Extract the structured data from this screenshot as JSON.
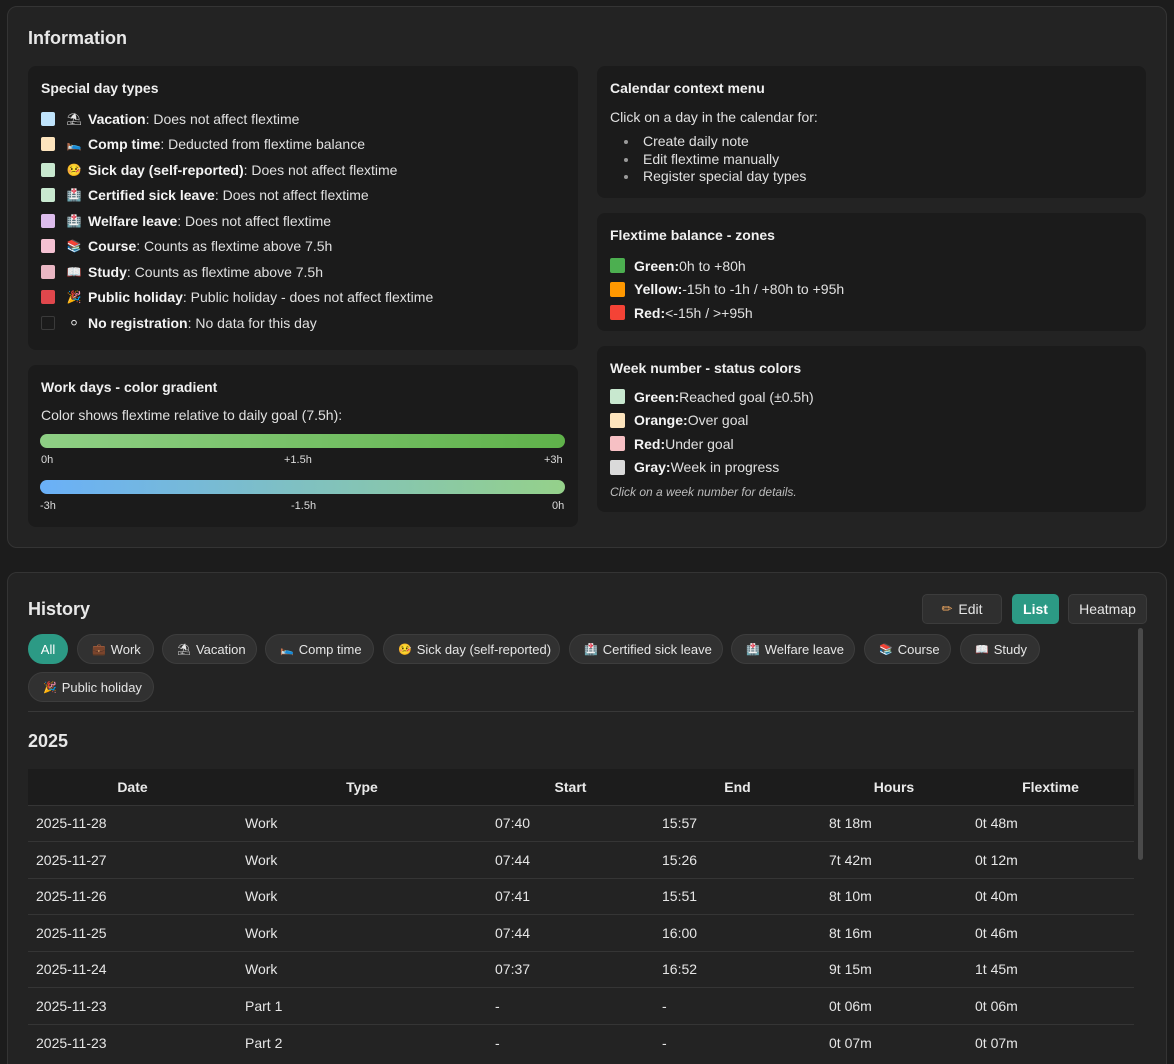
{
  "info": {
    "title": "Information",
    "special_days": {
      "title": "Special day types",
      "items": [
        {
          "color": "#bfe3fb",
          "emoji": "⛱",
          "name": "Vacation",
          "desc": ": Does not affect flextime"
        },
        {
          "color": "#fde4bd",
          "emoji": "🛌",
          "name": "Comp time",
          "desc": ": Deducted from flextime balance"
        },
        {
          "color": "#c8e8cf",
          "emoji": "🤒",
          "name": "Sick day (self-reported)",
          "desc": ": Does not affect flextime"
        },
        {
          "color": "#c8e8cf",
          "emoji": "🏥",
          "name": "Certified sick leave",
          "desc": ": Does not affect flextime"
        },
        {
          "color": "#dcbcec",
          "emoji": "🏥",
          "name": "Welfare leave",
          "desc": ": Does not affect flextime"
        },
        {
          "color": "#f4c1d2",
          "emoji": "📚",
          "name": "Course",
          "desc": ": Counts as flextime above 7.5h"
        },
        {
          "color": "#eab7c4",
          "emoji": "📖",
          "name": "Study",
          "desc": ": Counts as flextime above 7.5h"
        },
        {
          "color": "#e0474c",
          "emoji": "🎉",
          "name": "Public holiday",
          "desc": ": Public holiday - does not affect flextime"
        },
        {
          "color": "transparent",
          "emoji": "⚪",
          "name": "No registration",
          "desc": ": No data for this day"
        }
      ]
    },
    "context_menu": {
      "title": "Calendar context menu",
      "intro": "Click on a day in the calendar for:",
      "items": [
        "Create daily note",
        "Edit flextime manually",
        "Register special day types"
      ]
    },
    "zones": {
      "title": "Flextime balance - zones",
      "items": [
        {
          "color": "#4caf50",
          "name": "Green:",
          "desc": " 0h to +80h"
        },
        {
          "color": "#ff9800",
          "name": "Yellow:",
          "desc": " -15h to -1h / +80h to +95h"
        },
        {
          "color": "#f44336",
          "name": "Red:",
          "desc": " <-15h / >+95h"
        }
      ]
    },
    "gradient": {
      "title": "Work days - color gradient",
      "intro": "Color shows flextime relative to daily goal (7.5h):",
      "positive_labels": [
        "0h",
        "+1.5h",
        "+3h"
      ],
      "negative_labels": [
        "-3h",
        "-1.5h",
        "0h"
      ],
      "positive_colors": [
        "#8fcf85",
        "#5fb24a"
      ],
      "negative_colors": [
        "#6ab0f8",
        "#95d18a"
      ]
    },
    "week_status": {
      "title": "Week number - status colors",
      "items": [
        {
          "color": "#c8e8cf",
          "name": "Green:",
          "desc": " Reached goal (±0.5h)"
        },
        {
          "color": "#fde4bd",
          "name": "Orange:",
          "desc": " Over goal"
        },
        {
          "color": "#f7c0c4",
          "name": "Red:",
          "desc": " Under goal"
        },
        {
          "color": "#dadada",
          "name": "Gray:",
          "desc": " Week in progress"
        }
      ],
      "note": "Click on a week number for details."
    }
  },
  "history": {
    "title": "History",
    "buttons": {
      "edit": "Edit",
      "edit_icon": "✏",
      "list": "List",
      "heatmap": "Heatmap"
    },
    "filters": [
      {
        "emoji": "",
        "label": "All",
        "active": true
      },
      {
        "emoji": "💼",
        "label": "Work"
      },
      {
        "emoji": "⛱",
        "label": "Vacation"
      },
      {
        "emoji": "🛌",
        "label": "Comp time"
      },
      {
        "emoji": "🤒",
        "label": "Sick day (self-reported)"
      },
      {
        "emoji": "🏥",
        "label": "Certified sick leave"
      },
      {
        "emoji": "🏥",
        "label": "Welfare leave"
      },
      {
        "emoji": "📚",
        "label": "Course"
      },
      {
        "emoji": "📖",
        "label": "Study"
      },
      {
        "emoji": "🎉",
        "label": "Public holiday"
      }
    ],
    "year": "2025",
    "columns": [
      "Date",
      "Type",
      "Start",
      "End",
      "Hours",
      "Flextime"
    ],
    "rows": [
      [
        "2025-11-28",
        "Work",
        "07:40",
        "15:57",
        "8t 18m",
        "0t 48m"
      ],
      [
        "2025-11-27",
        "Work",
        "07:44",
        "15:26",
        "7t 42m",
        "0t 12m"
      ],
      [
        "2025-11-26",
        "Work",
        "07:41",
        "15:51",
        "8t 10m",
        "0t 40m"
      ],
      [
        "2025-11-25",
        "Work",
        "07:44",
        "16:00",
        "8t 16m",
        "0t 46m"
      ],
      [
        "2025-11-24",
        "Work",
        "07:37",
        "16:52",
        "9t 15m",
        "1t 45m"
      ],
      [
        "2025-11-23",
        "Part 1",
        "-",
        "-",
        "0t 06m",
        "0t 06m"
      ],
      [
        "2025-11-23",
        "Part 2",
        "-",
        "-",
        "0t 07m",
        "0t 07m"
      ]
    ]
  }
}
